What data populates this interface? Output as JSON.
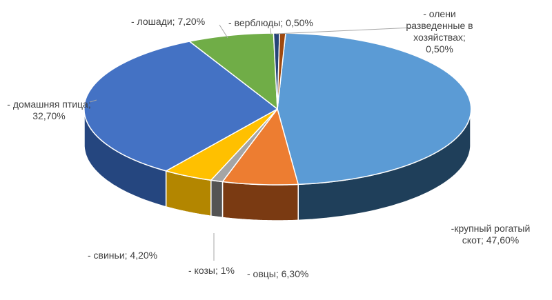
{
  "chart_data": {
    "type": "pie",
    "style": "3d",
    "slices": [
      {
        "label": "-крупный рогатый\nскот; 47,60%",
        "value": 47.6,
        "color": "#5b9bd5",
        "side": "#1f3f5a"
      },
      {
        "label": "- овцы; 6,30%",
        "value": 6.3,
        "color": "#ed7d31",
        "side": "#7a3a12"
      },
      {
        "label": "- козы; 1%",
        "value": 1.0,
        "color": "#a5a5a5",
        "side": "#545454"
      },
      {
        "label": "- свиньи; 4,20%",
        "value": 4.2,
        "color": "#ffc000",
        "side": "#b38600"
      },
      {
        "label": "- домашняя птица;\n32,70%",
        "value": 32.7,
        "color": "#4472c4",
        "side": "#25467f"
      },
      {
        "label": "- лошади; 7,20%",
        "value": 7.2,
        "color": "#70ad47",
        "side": "#3c6b24"
      },
      {
        "label": "- верблюды; 0,50%",
        "value": 0.5,
        "color": "#264478",
        "side": "#13233d"
      },
      {
        "label": "- олени\nразведенные в\nхозяйствах;\n0,50%",
        "value": 0.5,
        "color": "#9e480e",
        "side": "#4d2307"
      }
    ]
  }
}
